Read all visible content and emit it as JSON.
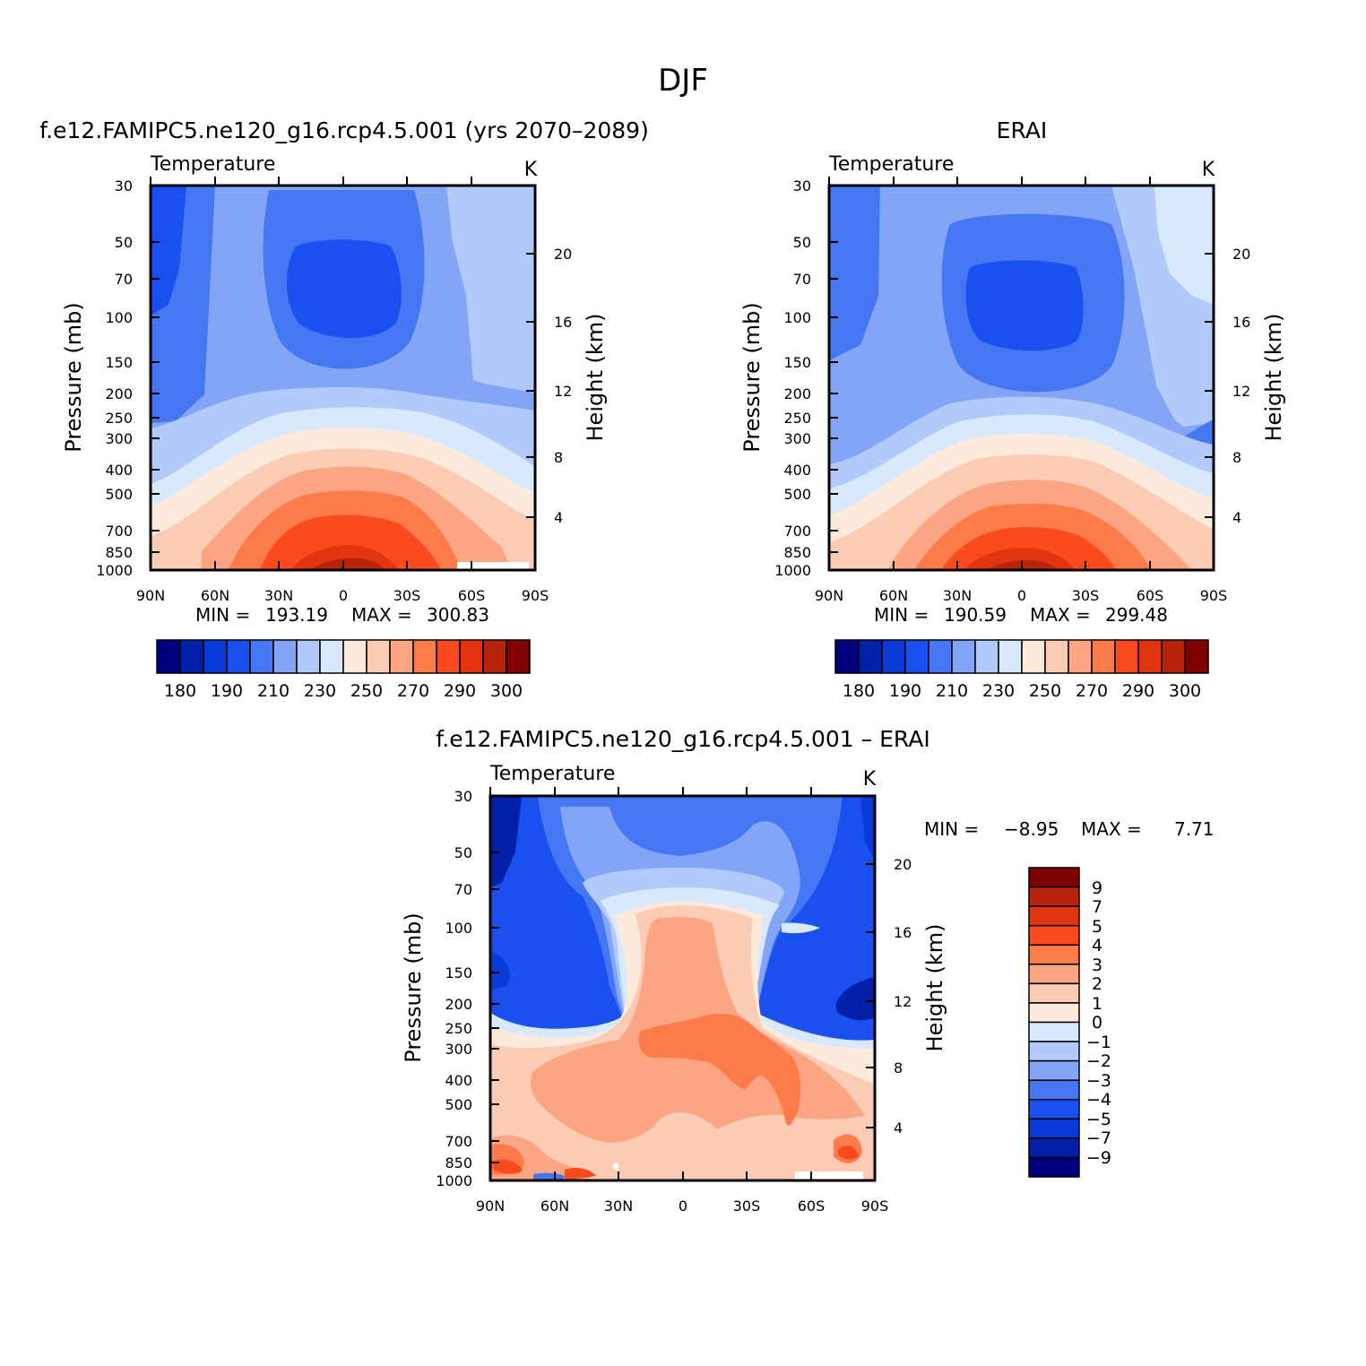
{
  "figure": {
    "title": "DJF"
  },
  "chart_data": [
    {
      "type": "heatmap",
      "title": "f.e12.FAMIPC5.ne120_g16.rcp4.5.001 (yrs 2070–2089)",
      "left_label": "Temperature",
      "units": "K",
      "xlabel": "",
      "ylabel": "Pressure (mb)",
      "y2label": "Height (km)",
      "x_ticks": [
        "90N",
        "60N",
        "30N",
        "0",
        "30S",
        "60S",
        "90S"
      ],
      "y_ticks": [
        "30",
        "50",
        "70",
        "100",
        "150",
        "200",
        "250",
        "300",
        "400",
        "500",
        "700",
        "850",
        "1000"
      ],
      "y2_ticks": [
        "20",
        "16",
        "12",
        "8",
        "4"
      ],
      "ylim": [
        1000,
        30
      ],
      "stats": {
        "min_label": "MIN =",
        "min": "193.19",
        "max_label": "MAX =",
        "max": "300.83"
      },
      "colorbar": {
        "levels": [
          180,
          185,
          190,
          200,
          210,
          220,
          230,
          240,
          250,
          260,
          270,
          280,
          290,
          295,
          300
        ],
        "tick_labels": [
          "180",
          "190",
          "210",
          "230",
          "250",
          "270",
          "290",
          "300"
        ]
      }
    },
    {
      "type": "heatmap",
      "title": "ERAI",
      "left_label": "Temperature",
      "units": "K",
      "xlabel": "",
      "ylabel": "Pressure (mb)",
      "y2label": "Height (km)",
      "x_ticks": [
        "90N",
        "60N",
        "30N",
        "0",
        "30S",
        "60S",
        "90S"
      ],
      "y_ticks": [
        "30",
        "50",
        "70",
        "100",
        "150",
        "200",
        "250",
        "300",
        "400",
        "500",
        "700",
        "850",
        "1000"
      ],
      "y2_ticks": [
        "20",
        "16",
        "12",
        "8",
        "4"
      ],
      "ylim": [
        1000,
        30
      ],
      "stats": {
        "min_label": "MIN =",
        "min": "190.59",
        "max_label": "MAX =",
        "max": "299.48"
      },
      "colorbar": {
        "levels": [
          180,
          185,
          190,
          200,
          210,
          220,
          230,
          240,
          250,
          260,
          270,
          280,
          290,
          295,
          300
        ],
        "tick_labels": [
          "180",
          "190",
          "210",
          "230",
          "250",
          "270",
          "290",
          "300"
        ]
      }
    },
    {
      "type": "heatmap",
      "title": "f.e12.FAMIPC5.ne120_g16.rcp4.5.001 – ERAI",
      "left_label": "Temperature",
      "units": "K",
      "xlabel": "",
      "ylabel": "Pressure (mb)",
      "y2label": "Height (km)",
      "x_ticks": [
        "90N",
        "60N",
        "30N",
        "0",
        "30S",
        "60S",
        "90S"
      ],
      "y_ticks": [
        "30",
        "50",
        "70",
        "100",
        "150",
        "200",
        "250",
        "300",
        "400",
        "500",
        "700",
        "850",
        "1000"
      ],
      "y2_ticks": [
        "20",
        "16",
        "12",
        "8",
        "4"
      ],
      "ylim": [
        1000,
        30
      ],
      "stats": {
        "min_label": "MIN =",
        "min": "−8.95",
        "max_label": "MAX =",
        "max": "7.71"
      },
      "colorbar": {
        "levels": [
          -9,
          -7,
          -5,
          -4,
          -3,
          -2,
          -1,
          0,
          1,
          2,
          3,
          4,
          5,
          7,
          9
        ],
        "tick_labels": [
          "9",
          "7",
          "5",
          "4",
          "3",
          "2",
          "1",
          "0",
          "−1",
          "−2",
          "−3",
          "−4",
          "−5",
          "−7",
          "−9"
        ]
      }
    }
  ],
  "colors": {
    "temperature_scale": [
      "#00007e",
      "#0220a8",
      "#0a3bd9",
      "#1b50f0",
      "#4577f2",
      "#83a5f8",
      "#b2cafa",
      "#d8e9fd",
      "#feeadb",
      "#fccbb3",
      "#fca583",
      "#fd7a4a",
      "#fb4b1e",
      "#e33410",
      "#b8230c",
      "#810000"
    ],
    "difference_scale": [
      "#00007e",
      "#0220a8",
      "#0a3bd9",
      "#1b50f0",
      "#4577f2",
      "#83a5f8",
      "#b2cafa",
      "#d8e9fd",
      "#feeadb",
      "#fccbb3",
      "#fca583",
      "#fd7a4a",
      "#fb4b1e",
      "#e33410",
      "#b8230c",
      "#810000"
    ]
  }
}
